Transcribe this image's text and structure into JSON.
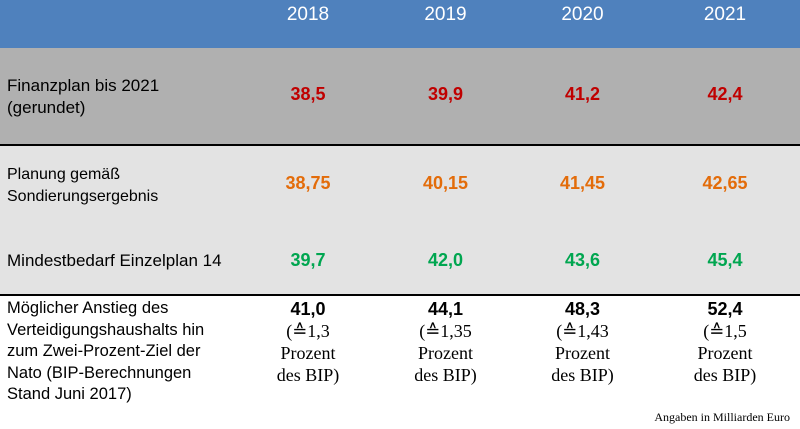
{
  "chart_data": {
    "type": "table",
    "columns": [
      "2018",
      "2019",
      "2020",
      "2021"
    ],
    "rows": [
      {
        "label": "Finanzplan bis 2021 (gerundet)",
        "label_lines": [
          "Finanzplan bis 2021",
          "(gerundet)"
        ],
        "values": [
          "38,5",
          "39,9",
          "41,2",
          "42,4"
        ],
        "color": "#c00000"
      },
      {
        "label": "Planung gemäß Sondierungsergebnis",
        "label_lines": [
          "Planung gemäß",
          "Sondierungsergebnis"
        ],
        "values": [
          "38,75",
          "40,15",
          "41,45",
          "42,65"
        ],
        "color": "#e36c0a"
      },
      {
        "label": "Mindestbedarf Einzelplan 14",
        "label_lines": [
          "Mindestbedarf Einzelplan 14"
        ],
        "values": [
          "39,7",
          "42,0",
          "43,6",
          "45,4"
        ],
        "color": "#00a650"
      },
      {
        "label": "Möglicher Anstieg des Verteidigungshaushalts hin zum Zwei-Prozent-Ziel der Nato (BIP-Berechnungen Stand Juni 2017)",
        "label_lines": [
          "Möglicher Anstieg des",
          "Verteidigungshaushalts hin",
          "zum Zwei-Prozent-Ziel der",
          "Nato (BIP-Berechnungen",
          "Stand Juni 2017)"
        ],
        "values": [
          "41,0",
          "44,1",
          "48,3",
          "52,4"
        ],
        "sub": [
          [
            "(≙1,3",
            "Prozent",
            "des BIP)"
          ],
          [
            "(≙1,35",
            "Prozent",
            "des BIP)"
          ],
          [
            "(≙1,43",
            "Prozent",
            "des BIP)"
          ],
          [
            "(≙1,5",
            "Prozent",
            "des BIP)"
          ]
        ],
        "color": "#000000"
      }
    ]
  },
  "footnote": "Angaben in Milliarden Euro",
  "colors": {
    "header_bg": "#4f81bd",
    "row1_bg": "#b0b0b0",
    "row_light_bg": "#e3e3e3"
  }
}
